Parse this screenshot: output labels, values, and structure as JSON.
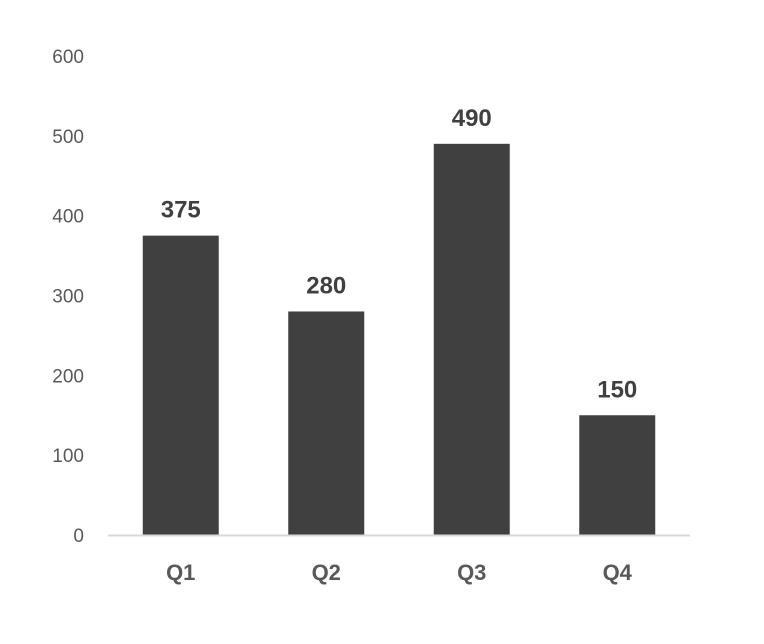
{
  "chart_data": {
    "type": "bar",
    "title": "",
    "xlabel": "",
    "ylabel": "",
    "categories": [
      "Q1",
      "Q2",
      "Q3",
      "Q4"
    ],
    "values": [
      375,
      280,
      490,
      150
    ],
    "data_labels": [
      "375",
      "280",
      "490",
      "150"
    ],
    "ylim": [
      0,
      600
    ],
    "yticks": [
      0,
      100,
      200,
      300,
      400,
      500,
      600
    ],
    "ytick_labels": [
      "0",
      "100",
      "200",
      "300",
      "400",
      "500",
      "600"
    ],
    "grid": false,
    "legend": "none",
    "colors": {
      "bar": "#404040",
      "axis": "#d9d9d9",
      "tick_text": "#595959",
      "data_label_text": "#404040"
    }
  }
}
